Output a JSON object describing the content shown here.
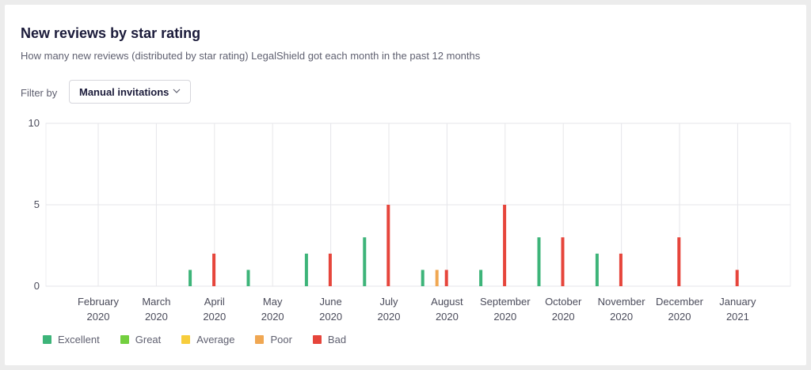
{
  "header": {
    "title": "New reviews by star rating",
    "subtitle": "How many new reviews (distributed by star rating) LegalShield got each month in the past 12 months"
  },
  "filter": {
    "label": "Filter by",
    "selected": "Manual invitations",
    "icon": "chevron-down-icon"
  },
  "chart_data": {
    "type": "bar",
    "categories": [
      [
        "February",
        "2020"
      ],
      [
        "March",
        "2020"
      ],
      [
        "April",
        "2020"
      ],
      [
        "May",
        "2020"
      ],
      [
        "June",
        "2020"
      ],
      [
        "July",
        "2020"
      ],
      [
        "August",
        "2020"
      ],
      [
        "September",
        "2020"
      ],
      [
        "October",
        "2020"
      ],
      [
        "November",
        "2020"
      ],
      [
        "December",
        "2020"
      ],
      [
        "January",
        "2021"
      ]
    ],
    "series": [
      {
        "name": "Excellent",
        "color": "#3db479",
        "values": [
          0,
          0,
          1,
          1,
          2,
          3,
          1,
          1,
          3,
          2,
          0,
          0
        ]
      },
      {
        "name": "Great",
        "color": "#73cf3f",
        "values": [
          0,
          0,
          0,
          0,
          0,
          0,
          0,
          0,
          0,
          0,
          0,
          0
        ]
      },
      {
        "name": "Average",
        "color": "#f7cd3c",
        "values": [
          0,
          0,
          0,
          0,
          0,
          0,
          0,
          0,
          0,
          0,
          0,
          0
        ]
      },
      {
        "name": "Poor",
        "color": "#f0a752",
        "values": [
          0,
          0,
          0,
          0,
          0,
          0,
          1,
          0,
          0,
          0,
          0,
          0
        ]
      },
      {
        "name": "Bad",
        "color": "#e6453b",
        "values": [
          0,
          0,
          2,
          0,
          2,
          5,
          1,
          5,
          3,
          2,
          3,
          1
        ]
      }
    ],
    "yticks": [
      0,
      5,
      10
    ],
    "ylim": [
      0,
      10
    ],
    "grid": true,
    "legend_position": "bottom-left"
  }
}
